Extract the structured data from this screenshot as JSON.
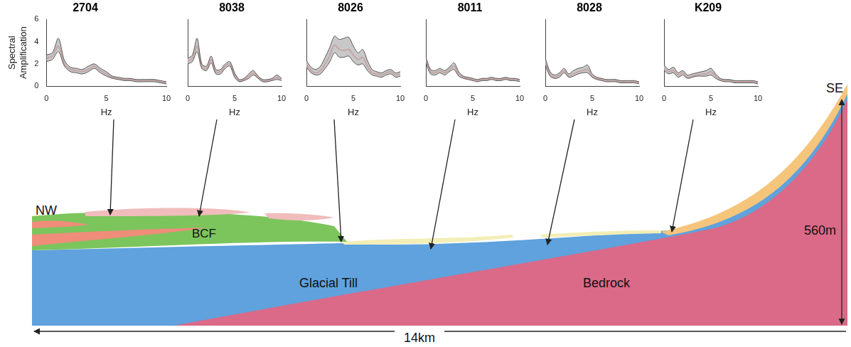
{
  "chart_data": [
    {
      "type": "line",
      "title": "2704",
      "xlabel": "Hz",
      "ylabel": "Spectral Amplification",
      "color": "#e3201b",
      "grid": false,
      "xlim": [
        0,
        10
      ],
      "xticks": [
        0,
        5,
        10
      ],
      "ylim": [
        0,
        6
      ],
      "yticks": [
        0,
        2,
        4,
        6
      ],
      "x": [
        0,
        0.5,
        1,
        1.5,
        2,
        2.5,
        3,
        3.5,
        4,
        4.5,
        5,
        5.5,
        6,
        6.5,
        7,
        7.5,
        8,
        8.5,
        9,
        9.5,
        10
      ],
      "values": [
        2.5,
        2.7,
        3.6,
        2.0,
        1.5,
        1.4,
        1.3,
        1.5,
        1.8,
        1.4,
        1.1,
        0.8,
        0.7,
        0.6,
        0.6,
        0.5,
        0.5,
        0.5,
        0.5,
        0.4,
        0.3
      ],
      "lower": [
        2.2,
        2.4,
        3.1,
        1.8,
        1.3,
        1.2,
        1.1,
        1.3,
        1.6,
        1.2,
        0.9,
        0.7,
        0.6,
        0.5,
        0.5,
        0.4,
        0.4,
        0.4,
        0.4,
        0.3,
        0.2
      ],
      "upper": [
        2.8,
        3.0,
        4.3,
        2.3,
        1.7,
        1.6,
        1.5,
        1.8,
        2.0,
        1.6,
        1.3,
        0.9,
        0.8,
        0.7,
        0.7,
        0.6,
        0.6,
        0.6,
        0.6,
        0.5,
        0.4
      ]
    },
    {
      "type": "line",
      "title": "8038",
      "xlabel": "Hz",
      "color": "#e3201b",
      "grid": false,
      "tick_labels": "x",
      "xlim": [
        0,
        10
      ],
      "xticks": [
        0,
        5,
        10
      ],
      "ylim": [
        0,
        6
      ],
      "yticks": [
        0,
        2,
        4,
        6
      ],
      "x": [
        0,
        0.5,
        1,
        1.5,
        2,
        2.5,
        3,
        3.5,
        4,
        4.5,
        5,
        5.5,
        6,
        6.5,
        7,
        7.5,
        8,
        8.5,
        9,
        9.5,
        10
      ],
      "values": [
        2.2,
        2.5,
        3.6,
        1.8,
        1.6,
        2.4,
        1.3,
        1.3,
        1.8,
        2.0,
        1.0,
        0.5,
        0.6,
        0.9,
        1.2,
        0.8,
        0.5,
        0.5,
        0.6,
        0.8,
        0.6
      ],
      "lower": [
        2.0,
        2.2,
        3.1,
        1.6,
        1.4,
        2.1,
        1.1,
        1.1,
        1.6,
        1.8,
        0.8,
        0.4,
        0.5,
        0.7,
        1.0,
        0.7,
        0.4,
        0.4,
        0.5,
        0.6,
        0.5
      ],
      "upper": [
        2.5,
        2.8,
        4.3,
        2.0,
        1.8,
        2.7,
        1.5,
        1.5,
        2.0,
        2.2,
        1.2,
        0.6,
        0.7,
        1.1,
        1.4,
        0.9,
        0.6,
        0.6,
        0.7,
        1.0,
        0.7
      ]
    },
    {
      "type": "line",
      "title": "8026",
      "xlabel": "Hz",
      "color": "#e3201b",
      "grid": false,
      "tick_labels": "x",
      "xlim": [
        0,
        10
      ],
      "xticks": [
        0,
        5,
        10
      ],
      "ylim": [
        0,
        6
      ],
      "yticks": [
        0,
        2,
        4,
        6
      ],
      "x": [
        0,
        0.5,
        1,
        1.5,
        2,
        2.5,
        3,
        3.5,
        4,
        4.5,
        5,
        5.5,
        6,
        6.5,
        7,
        7.5,
        8,
        8.5,
        9,
        9.5,
        10
      ],
      "values": [
        2.0,
        1.4,
        1.2,
        1.4,
        2.0,
        2.8,
        3.7,
        3.3,
        3.2,
        3.3,
        2.8,
        2.4,
        2.6,
        1.8,
        1.2,
        1.1,
        1.0,
        1.2,
        1.3,
        1.0,
        1.1
      ],
      "lower": [
        1.7,
        1.2,
        1.0,
        1.1,
        1.6,
        2.2,
        3.0,
        2.6,
        2.6,
        2.7,
        2.2,
        1.9,
        2.0,
        1.4,
        1.0,
        0.9,
        0.8,
        1.0,
        1.1,
        0.8,
        0.9
      ],
      "upper": [
        2.3,
        1.7,
        1.5,
        1.8,
        2.6,
        3.5,
        4.5,
        4.2,
        4.3,
        4.4,
        3.6,
        3.0,
        3.3,
        2.3,
        1.5,
        1.3,
        1.2,
        1.4,
        1.5,
        1.2,
        1.3
      ]
    },
    {
      "type": "line",
      "title": "8011",
      "xlabel": "Hz",
      "color": "#e3201b",
      "grid": false,
      "tick_labels": "x",
      "xlim": [
        0,
        10
      ],
      "xticks": [
        0,
        5,
        10
      ],
      "ylim": [
        0,
        6
      ],
      "yticks": [
        0,
        2,
        4,
        6
      ],
      "x": [
        0,
        0.5,
        1,
        1.5,
        2,
        2.5,
        3,
        3.5,
        4,
        4.5,
        5,
        5.5,
        6,
        6.5,
        7,
        7.5,
        8,
        8.5,
        9,
        9.5,
        10
      ],
      "values": [
        2.4,
        1.3,
        1.2,
        1.4,
        1.2,
        1.5,
        1.8,
        1.1,
        0.8,
        0.7,
        0.6,
        0.5,
        0.6,
        0.6,
        0.7,
        0.6,
        0.6,
        0.7,
        0.6,
        0.6,
        0.5
      ],
      "lower": [
        2.1,
        1.1,
        1.0,
        1.2,
        1.0,
        1.3,
        1.5,
        0.9,
        0.7,
        0.6,
        0.5,
        0.4,
        0.5,
        0.5,
        0.6,
        0.5,
        0.5,
        0.6,
        0.5,
        0.5,
        0.4
      ],
      "upper": [
        2.6,
        1.5,
        1.4,
        1.6,
        1.4,
        1.7,
        2.1,
        1.3,
        0.9,
        0.8,
        0.7,
        0.6,
        0.7,
        0.7,
        0.8,
        0.7,
        0.7,
        0.8,
        0.7,
        0.7,
        0.6
      ]
    },
    {
      "type": "line",
      "title": "8028",
      "xlabel": "Hz",
      "color": "#e3201b",
      "grid": false,
      "tick_labels": "x",
      "xlim": [
        0,
        10
      ],
      "xticks": [
        0,
        5,
        10
      ],
      "ylim": [
        0,
        6
      ],
      "yticks": [
        0,
        2,
        4,
        6
      ],
      "x": [
        0,
        0.5,
        1,
        1.5,
        2,
        2.5,
        3,
        3.5,
        4,
        4.5,
        5,
        5.5,
        6,
        6.5,
        7,
        7.5,
        8,
        8.5,
        9,
        9.5,
        10
      ],
      "values": [
        2.2,
        1.1,
        0.8,
        1.0,
        1.4,
        0.9,
        1.1,
        1.3,
        1.4,
        1.5,
        0.9,
        0.7,
        0.6,
        0.5,
        0.5,
        0.5,
        0.4,
        0.4,
        0.4,
        0.4,
        0.3
      ],
      "lower": [
        1.9,
        0.9,
        0.7,
        0.8,
        1.2,
        0.8,
        0.9,
        1.1,
        1.2,
        1.2,
        0.8,
        0.6,
        0.5,
        0.4,
        0.4,
        0.4,
        0.3,
        0.3,
        0.3,
        0.3,
        0.2
      ],
      "upper": [
        2.5,
        1.3,
        1.0,
        1.2,
        1.6,
        1.1,
        1.4,
        1.6,
        1.7,
        1.9,
        1.1,
        0.8,
        0.7,
        0.6,
        0.6,
        0.6,
        0.5,
        0.5,
        0.5,
        0.5,
        0.4
      ]
    },
    {
      "type": "line",
      "title": "K209",
      "xlabel": "Hz",
      "color": "#e3201b",
      "grid": false,
      "tick_labels": "x",
      "xlim": [
        0,
        10
      ],
      "xticks": [
        0,
        5,
        10
      ],
      "ylim": [
        0,
        6
      ],
      "yticks": [
        0,
        2,
        4,
        6
      ],
      "x": [
        0,
        0.5,
        1,
        1.5,
        2,
        2.5,
        3,
        3.5,
        4,
        4.5,
        5,
        5.5,
        6,
        6.5,
        7,
        7.5,
        8,
        8.5,
        9,
        9.5,
        10
      ],
      "values": [
        1.6,
        1.3,
        1.4,
        1.0,
        1.2,
        0.8,
        0.9,
        1.0,
        1.1,
        1.1,
        1.3,
        0.9,
        0.6,
        0.5,
        0.5,
        0.4,
        0.4,
        0.4,
        0.4,
        0.4,
        0.3
      ],
      "lower": [
        1.4,
        1.1,
        1.2,
        0.8,
        1.0,
        0.7,
        0.8,
        0.9,
        0.9,
        0.9,
        1.0,
        0.7,
        0.5,
        0.4,
        0.4,
        0.3,
        0.3,
        0.3,
        0.3,
        0.3,
        0.2
      ],
      "upper": [
        1.9,
        1.5,
        1.7,
        1.2,
        1.4,
        1.0,
        1.1,
        1.2,
        1.3,
        1.4,
        1.6,
        1.1,
        0.7,
        0.6,
        0.6,
        0.5,
        0.5,
        0.5,
        0.5,
        0.5,
        0.4
      ]
    }
  ],
  "cross_section": {
    "left_end": "NW",
    "right_end": "SE",
    "layers": {
      "bcf": "BCF",
      "till": "Glacial Till",
      "bedrock": "Bedrock"
    },
    "height": "560m",
    "length": "14km"
  }
}
